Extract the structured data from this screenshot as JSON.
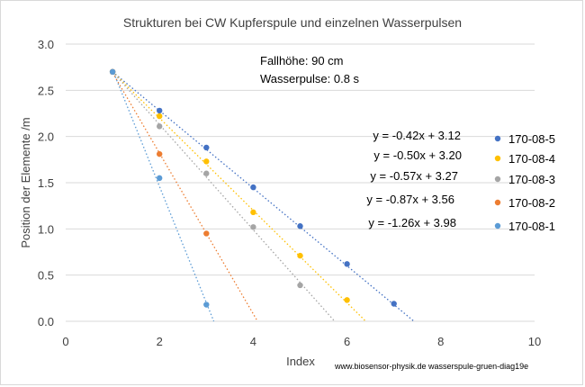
{
  "chart_data": {
    "type": "scatter",
    "title": "Strukturen bei CW Kupferspule und einzelnen Wasserpulsen",
    "xlabel": "Index",
    "ylabel": "Position der Elemente /m",
    "xlim": [
      0,
      10
    ],
    "ylim": [
      0,
      3
    ],
    "xticks": [
      "0",
      "2",
      "4",
      "6",
      "8",
      "10"
    ],
    "yticks": [
      "0.0",
      "0.5",
      "1.0",
      "1.5",
      "2.0",
      "2.5",
      "3.0"
    ],
    "grid": "horizontal",
    "legend_position": "right",
    "annotations": [
      "Fallhöhe: 90 cm",
      "Wasserpulse: 0.8 s"
    ],
    "footer": "www.biosensor-physik.de  wasserspule-gruen-diag19e",
    "series": [
      {
        "name": "170-08-5",
        "color": "#4472c4",
        "points": [
          [
            1,
            2.7
          ],
          [
            2,
            2.28
          ],
          [
            3,
            1.88
          ],
          [
            4,
            1.45
          ],
          [
            5,
            1.03
          ],
          [
            6,
            0.62
          ],
          [
            7,
            0.19
          ]
        ],
        "trendline": {
          "slope": -0.42,
          "intercept": 3.12,
          "label": "y = -0.42x + 3.12"
        }
      },
      {
        "name": "170-08-4",
        "color": "#ffc000",
        "points": [
          [
            1,
            2.7
          ],
          [
            2,
            2.22
          ],
          [
            3,
            1.73
          ],
          [
            4,
            1.18
          ],
          [
            5,
            0.71
          ],
          [
            6,
            0.23
          ]
        ],
        "trendline": {
          "slope": -0.5,
          "intercept": 3.2,
          "label": "y = -0.50x + 3.20"
        }
      },
      {
        "name": "170-08-3",
        "color": "#a5a5a5",
        "points": [
          [
            1,
            2.7
          ],
          [
            2,
            2.11
          ],
          [
            3,
            1.6
          ],
          [
            4,
            1.02
          ],
          [
            5,
            0.39
          ]
        ],
        "trendline": {
          "slope": -0.57,
          "intercept": 3.27,
          "label": "y = -0.57x + 3.27"
        }
      },
      {
        "name": "170-08-2",
        "color": "#ed7d31",
        "points": [
          [
            1,
            2.7
          ],
          [
            2,
            1.81
          ],
          [
            3,
            0.95
          ]
        ],
        "trendline": {
          "slope": -0.87,
          "intercept": 3.56,
          "label": "y = -0.87x + 3.56"
        }
      },
      {
        "name": "170-08-1",
        "color": "#5b9bd5",
        "points": [
          [
            1,
            2.7
          ],
          [
            2,
            1.55
          ],
          [
            3,
            0.18
          ]
        ],
        "trendline": {
          "slope": -1.26,
          "intercept": 3.98,
          "label": "y = -1.26x + 3.98"
        }
      }
    ]
  }
}
